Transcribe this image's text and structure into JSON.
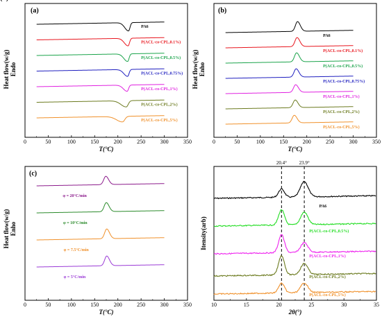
{
  "chart_data": [
    {
      "panel": "(a)",
      "type": "line",
      "xlabel": "T(°C)",
      "ylabel": "Heat flow(w/g)",
      "ylabel2": "Endo",
      "xlim": [
        0,
        350
      ],
      "xticks": [
        "0",
        "50",
        "100",
        "150",
        "200",
        "250",
        "300",
        "350"
      ],
      "x_range": [
        25,
        300
      ],
      "peak_type": "down",
      "series": [
        {
          "name": "PA6",
          "color": "#000000",
          "peak_x": 223,
          "amp": 12,
          "width": 5
        },
        {
          "name": "P(ACL-co-CPL,0.1%)",
          "color": "#e8141c",
          "peak_x": 222,
          "amp": 11,
          "width": 5
        },
        {
          "name": "P(ACL-co-CPL,0.5%)",
          "color": "#1aa34a",
          "peak_x": 221,
          "amp": 11,
          "width": 5
        },
        {
          "name": "P(ACL-co-CPL,0.75%)",
          "color": "#1d1dbf",
          "peak_x": 221,
          "amp": 10,
          "width": 5
        },
        {
          "name": "P(ACL-co-CPL,1%)",
          "color": "#e020e0",
          "peak_x": 220,
          "amp": 9,
          "width": 5
        },
        {
          "name": "P(ACL-co-CPL,2%)",
          "color": "#6b7a1e",
          "peak_x": 218,
          "amp": 9,
          "width": 7
        },
        {
          "name": "P(ACL-co-CPL,5%)",
          "color": "#f0902a",
          "peak_x": 210,
          "amp": 8,
          "width": 8
        }
      ]
    },
    {
      "panel": "(b)",
      "type": "line",
      "xlabel": "T(°C)",
      "ylabel": "Heat flow(w/g)",
      "ylabel2": "Enho",
      "xlim": [
        0,
        350
      ],
      "xticks": [
        "0",
        "50",
        "100",
        "150",
        "200",
        "250",
        "300",
        "350"
      ],
      "x_range": [
        25,
        300
      ],
      "peak_type": "up",
      "series": [
        {
          "name": "PA6",
          "color": "#000000",
          "peak_x": 180,
          "amp": 14,
          "width": 5
        },
        {
          "name": "P(ACL-co-CPL,0.1%)",
          "color": "#e8141c",
          "peak_x": 179,
          "amp": 13,
          "width": 5
        },
        {
          "name": "P(ACL-co-CPL,0.5%)",
          "color": "#1aa34a",
          "peak_x": 178,
          "amp": 13,
          "width": 5
        },
        {
          "name": "P(ACL-co-CPL,0.75%)",
          "color": "#1d1dbf",
          "peak_x": 177,
          "amp": 12,
          "width": 5
        },
        {
          "name": "P(ACL-co-CPL,1%)",
          "color": "#e020e0",
          "peak_x": 176,
          "amp": 11,
          "width": 5
        },
        {
          "name": "P(ACL-co-CPL,2%)",
          "color": "#6b7a1e",
          "peak_x": 175,
          "amp": 11,
          "width": 5
        },
        {
          "name": "P(ACL-co-CPL,5%)",
          "color": "#f0902a",
          "peak_x": 173,
          "amp": 11,
          "width": 5
        }
      ]
    },
    {
      "panel": "(c)",
      "type": "line",
      "xlabel": "T(°C)",
      "ylabel": "Heat flow(w/g)",
      "ylabel2": "Enho",
      "xlim": [
        0,
        350
      ],
      "xticks": [
        "0",
        "50",
        "100",
        "150",
        "200",
        "250",
        "300",
        "350"
      ],
      "x_range": [
        25,
        300
      ],
      "peak_type": "up",
      "series": [
        {
          "name": "φ = 20°C/min",
          "color": "#8b1a8b",
          "peak_x": 174,
          "amp": 12,
          "width": 5
        },
        {
          "name": "φ = 10°C/min",
          "color": "#2a8a2a",
          "peak_x": 175,
          "amp": 13,
          "width": 5
        },
        {
          "name": "φ = 7.5°C/min",
          "color": "#f0902a",
          "peak_x": 176,
          "amp": 14,
          "width": 5
        },
        {
          "name": "φ = 5°C/min",
          "color": "#9a3ad6",
          "peak_x": 176,
          "amp": 14,
          "width": 5
        }
      ]
    },
    {
      "panel": "(d)",
      "type": "line",
      "xlabel": "2θ(°)",
      "ylabel": "Itensity(arb)",
      "xlim": [
        10,
        35
      ],
      "xticks": [
        "10",
        "15",
        "20",
        "25",
        "30",
        "35"
      ],
      "x_range": [
        10,
        35
      ],
      "peak_lines": [
        20.4,
        23.9
      ],
      "peak_labels": [
        "20.4°",
        "23.9°"
      ],
      "series": [
        {
          "name": "PA6",
          "color": "#000000",
          "peaks": [
            [
              20.4,
              12,
              0.45
            ],
            [
              23.9,
              22,
              0.6
            ]
          ]
        },
        {
          "name": "P(ACL-co-CPL,0.5%)",
          "color": "#22dd22",
          "peaks": [
            [
              20.4,
              22,
              0.45
            ],
            [
              23.9,
              18,
              0.55
            ]
          ]
        },
        {
          "name": "P(ACL-co-CPL,1%)",
          "color": "#ee22ee",
          "peaks": [
            [
              20.4,
              26,
              0.45
            ],
            [
              23.9,
              14,
              0.55
            ]
          ]
        },
        {
          "name": "P(ACL-co-CPL,2%)",
          "color": "#6b7a1e",
          "peaks": [
            [
              20.4,
              28,
              0.45
            ],
            [
              23.9,
              16,
              0.55
            ]
          ]
        },
        {
          "name": "P(ACL-co-CPL,5%)",
          "color": "#f0902a",
          "peaks": [
            [
              20.4,
              14,
              0.45
            ],
            [
              23.9,
              14,
              0.55
            ]
          ]
        }
      ]
    }
  ]
}
